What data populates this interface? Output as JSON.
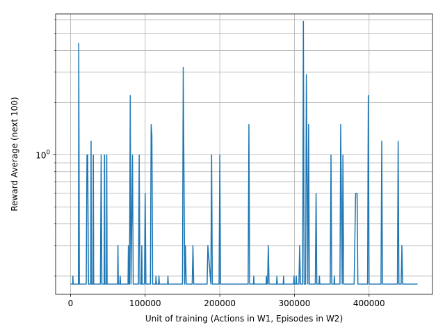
{
  "chart_data": {
    "type": "line",
    "title": "",
    "xlabel": "Unit of training (Actions in W1, Episodes in W2)",
    "ylabel": "Reward Average (next 100)",
    "yscale": "log",
    "grid": true,
    "xlim": [
      -20000,
      485000
    ],
    "ylim": [
      0.157,
      6.5
    ],
    "xticks": [
      0,
      100000,
      200000,
      300000,
      400000
    ],
    "xtick_labels": [
      "0",
      "100000",
      "200000",
      "300000",
      "400000"
    ],
    "yticks": [
      1
    ],
    "ytick_label_base": "10",
    "ytick_label_exp": "0",
    "line_color": "#1f77b4",
    "series": [
      {
        "x": [
          0,
          3000,
          3100,
          3600,
          10500,
          11000,
          11800,
          21000,
          22000,
          23000,
          24000,
          27000,
          27500,
          28000,
          30000,
          30500,
          31000,
          40000,
          41000,
          42000,
          45000,
          45500,
          46000,
          48000,
          48500,
          49000,
          63000,
          63500,
          64000,
          66000,
          66500,
          67000,
          77000,
          77500,
          78000,
          79000,
          80000,
          81000,
          83000,
          84000,
          86000,
          91000,
          92000,
          93000,
          95000,
          95500,
          96000,
          99000,
          100000,
          101000,
          107000,
          108000,
          109000,
          110000,
          111000,
          114000,
          114500,
          115000,
          118000,
          118500,
          119000,
          130000,
          130500,
          131000,
          148000,
          150000,
          151000,
          153000,
          154000,
          155000,
          163000,
          164000,
          165000,
          183000,
          184000,
          188000,
          189000,
          190000,
          199000,
          200000,
          201000,
          238000,
          239000,
          240000,
          245000,
          245500,
          246000,
          262000,
          262500,
          263000,
          264000,
          265000,
          266000,
          276000,
          276500,
          277000,
          285000,
          285500,
          286000,
          299000,
          299500,
          300000,
          302000,
          302500,
          303000,
          306000,
          307000,
          308000,
          311000,
          312000,
          313000,
          315000,
          316000,
          318000,
          319000,
          320000,
          328000,
          329000,
          330000,
          333000,
          333500,
          334000,
          348000,
          349000,
          350000,
          353000,
          353500,
          354000,
          361000,
          362000,
          364000,
          365000,
          366000,
          380000,
          382000,
          384000,
          385000,
          398000,
          399000,
          400000,
          416000,
          417000,
          418000,
          438000,
          439000,
          440000,
          443000,
          444000,
          445000,
          465000
        ],
        "y": [
          0.18,
          0.18,
          0.2,
          0.18,
          0.18,
          4.4,
          0.18,
          0.18,
          1.0,
          1.0,
          0.18,
          0.18,
          1.2,
          0.18,
          0.18,
          1.0,
          0.18,
          0.18,
          1.0,
          0.18,
          0.18,
          1.0,
          0.18,
          0.18,
          1.0,
          0.18,
          0.18,
          0.3,
          0.18,
          0.18,
          0.2,
          0.18,
          0.18,
          0.3,
          0.18,
          0.18,
          2.2,
          0.18,
          1.0,
          0.18,
          0.18,
          0.18,
          1.0,
          0.18,
          0.18,
          0.3,
          0.18,
          0.18,
          0.6,
          0.18,
          0.18,
          1.5,
          1.3,
          0.18,
          0.18,
          0.18,
          0.2,
          0.18,
          0.18,
          0.2,
          0.18,
          0.18,
          0.2,
          0.18,
          0.18,
          0.18,
          3.2,
          0.18,
          0.3,
          0.18,
          0.18,
          0.3,
          0.18,
          0.18,
          0.3,
          0.18,
          1.0,
          0.18,
          0.18,
          1.0,
          0.18,
          0.18,
          1.5,
          0.18,
          0.18,
          0.2,
          0.18,
          0.18,
          0.2,
          0.18,
          0.18,
          0.3,
          0.18,
          0.18,
          0.2,
          0.18,
          0.18,
          0.2,
          0.18,
          0.18,
          0.2,
          0.18,
          0.18,
          0.2,
          0.18,
          0.18,
          0.3,
          0.18,
          0.18,
          5.9,
          0.18,
          0.18,
          2.9,
          0.18,
          1.5,
          0.18,
          0.18,
          0.6,
          0.18,
          0.18,
          0.2,
          0.18,
          0.18,
          1.0,
          0.18,
          0.18,
          0.2,
          0.18,
          0.18,
          1.5,
          0.18,
          1.0,
          0.18,
          0.18,
          0.6,
          0.6,
          0.18,
          0.18,
          2.2,
          0.18,
          0.18,
          1.2,
          0.18,
          0.18,
          1.2,
          0.18,
          0.18,
          0.3,
          0.18,
          0.18
        ]
      }
    ]
  }
}
